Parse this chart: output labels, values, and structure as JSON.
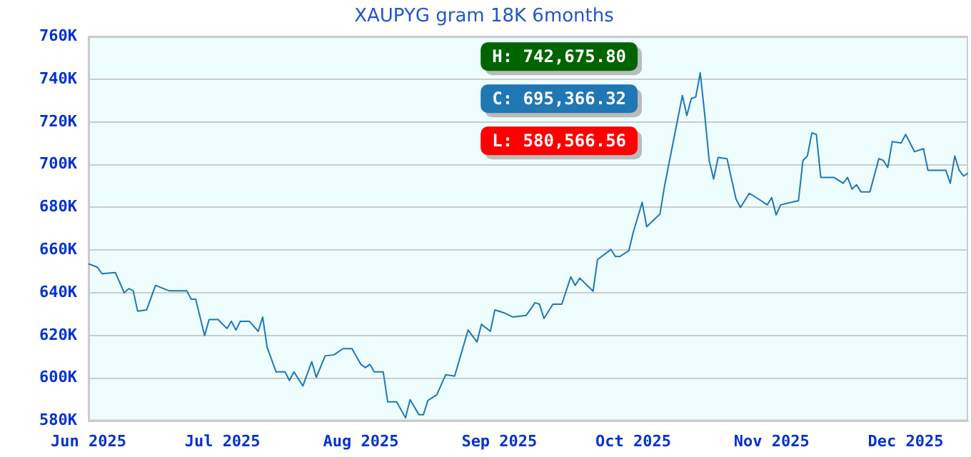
{
  "chart_data": {
    "type": "line",
    "title": "XAUPYG gram 18K 6months",
    "x": [
      "2025-06-01",
      "2025-06-03",
      "2025-06-04",
      "2025-06-07",
      "2025-06-09",
      "2025-06-10",
      "2025-06-11",
      "2025-06-12",
      "2025-06-14",
      "2025-06-16",
      "2025-06-19",
      "2025-06-23",
      "2025-06-24",
      "2025-06-25",
      "2025-06-27",
      "2025-06-28",
      "2025-06-30",
      "2025-07-02",
      "2025-07-03",
      "2025-07-04",
      "2025-07-05",
      "2025-07-07",
      "2025-07-09",
      "2025-07-10",
      "2025-07-11",
      "2025-07-13",
      "2025-07-15",
      "2025-07-16",
      "2025-07-17",
      "2025-07-19",
      "2025-07-21",
      "2025-07-22",
      "2025-07-24",
      "2025-07-26",
      "2025-07-28",
      "2025-07-30",
      "2025-08-01",
      "2025-08-02",
      "2025-08-03",
      "2025-08-04",
      "2025-08-06",
      "2025-08-07",
      "2025-08-08",
      "2025-08-09",
      "2025-08-11",
      "2025-08-12",
      "2025-08-14",
      "2025-08-15",
      "2025-08-16",
      "2025-08-18",
      "2025-08-20",
      "2025-08-22",
      "2025-08-25",
      "2025-08-27",
      "2025-08-28",
      "2025-08-30",
      "2025-08-31",
      "2025-09-02",
      "2025-09-04",
      "2025-09-07",
      "2025-09-09",
      "2025-09-10",
      "2025-09-11",
      "2025-09-13",
      "2025-09-15",
      "2025-09-17",
      "2025-09-18",
      "2025-09-19",
      "2025-09-22",
      "2025-09-23",
      "2025-09-26",
      "2025-09-27",
      "2025-09-28",
      "2025-09-30",
      "2025-10-01",
      "2025-10-03",
      "2025-10-04",
      "2025-10-07",
      "2025-10-08",
      "2025-10-12",
      "2025-10-13",
      "2025-10-14",
      "2025-10-15",
      "2025-10-16",
      "2025-10-17",
      "2025-10-18",
      "2025-10-19",
      "2025-10-20",
      "2025-10-22",
      "2025-10-24",
      "2025-10-25",
      "2025-10-27",
      "2025-10-29",
      "2025-10-31",
      "2025-11-01",
      "2025-11-02",
      "2025-11-03",
      "2025-11-07",
      "2025-11-08",
      "2025-11-09",
      "2025-11-10",
      "2025-11-11",
      "2025-11-12",
      "2025-11-15",
      "2025-11-17",
      "2025-11-18",
      "2025-11-19",
      "2025-11-20",
      "2025-11-21",
      "2025-11-23",
      "2025-11-25",
      "2025-11-26",
      "2025-11-27",
      "2025-11-28",
      "2025-11-30",
      "2025-12-01",
      "2025-12-03",
      "2025-12-05",
      "2025-12-06",
      "2025-12-10",
      "2025-12-11",
      "2025-12-12",
      "2025-12-13",
      "2025-12-14",
      "2025-12-15"
    ],
    "series": [
      {
        "color": "#1f77b4",
        "values": [
          653600,
          652000,
          649000,
          649500,
          640000,
          642000,
          641000,
          631400,
          632000,
          643500,
          641000,
          641000,
          637000,
          637000,
          620000,
          627500,
          627500,
          623300,
          626700,
          622600,
          626700,
          626700,
          622000,
          628700,
          614500,
          603000,
          603000,
          599000,
          603000,
          596400,
          607800,
          600400,
          610500,
          611000,
          613900,
          613900,
          606500,
          605000,
          606500,
          603000,
          603000,
          589000,
          589000,
          589000,
          581500,
          590000,
          583000,
          583000,
          589600,
          592300,
          601700,
          601000,
          622600,
          617000,
          625300,
          622000,
          632000,
          630700,
          628700,
          629400,
          635400,
          634700,
          628000,
          634700,
          634700,
          647500,
          643500,
          646900,
          640800,
          655600,
          660300,
          657000,
          657000,
          659700,
          668400,
          682400,
          671000,
          677000,
          690000,
          732400,
          723000,
          731000,
          731700,
          743000,
          723600,
          702000,
          693300,
          703400,
          702800,
          684000,
          680000,
          686600,
          684000,
          681200,
          684600,
          676500,
          681200,
          683200,
          702000,
          704100,
          714900,
          714200,
          694000,
          694000,
          691300,
          694000,
          688600,
          690600,
          687300,
          687300,
          702800,
          702000,
          698700,
          710800,
          710200,
          714200,
          706100,
          707500,
          697400,
          697400,
          691300,
          704100,
          697400,
          694700,
          696000
        ]
      }
    ],
    "xlim": [
      "2025-06-01",
      "2025-12-15"
    ],
    "xticks": [
      {
        "value": "2025-06-01",
        "label": "Jun 2025"
      },
      {
        "value": "2025-07-01",
        "label": "Jul 2025"
      },
      {
        "value": "2025-08-01",
        "label": "Aug 2025"
      },
      {
        "value": "2025-09-01",
        "label": "Sep 2025"
      },
      {
        "value": "2025-10-01",
        "label": "Oct 2025"
      },
      {
        "value": "2025-11-01",
        "label": "Nov 2025"
      },
      {
        "value": "2025-12-01",
        "label": "Dec 2025"
      }
    ],
    "ylim": [
      580000,
      760000
    ],
    "yticks": [
      {
        "value": 580000,
        "label": "580K"
      },
      {
        "value": 600000,
        "label": "600K"
      },
      {
        "value": 620000,
        "label": "620K"
      },
      {
        "value": 640000,
        "label": "640K"
      },
      {
        "value": 660000,
        "label": "660K"
      },
      {
        "value": 680000,
        "label": "680K"
      },
      {
        "value": 700000,
        "label": "700K"
      },
      {
        "value": 720000,
        "label": "720K"
      },
      {
        "value": 740000,
        "label": "740K"
      },
      {
        "value": 760000,
        "label": "760K"
      }
    ],
    "grid": "y",
    "legend": false,
    "marker": "none",
    "annotations": [
      "H: 742,675.80",
      "C: 695,366.32",
      "L: 580,566.56"
    ]
  }
}
